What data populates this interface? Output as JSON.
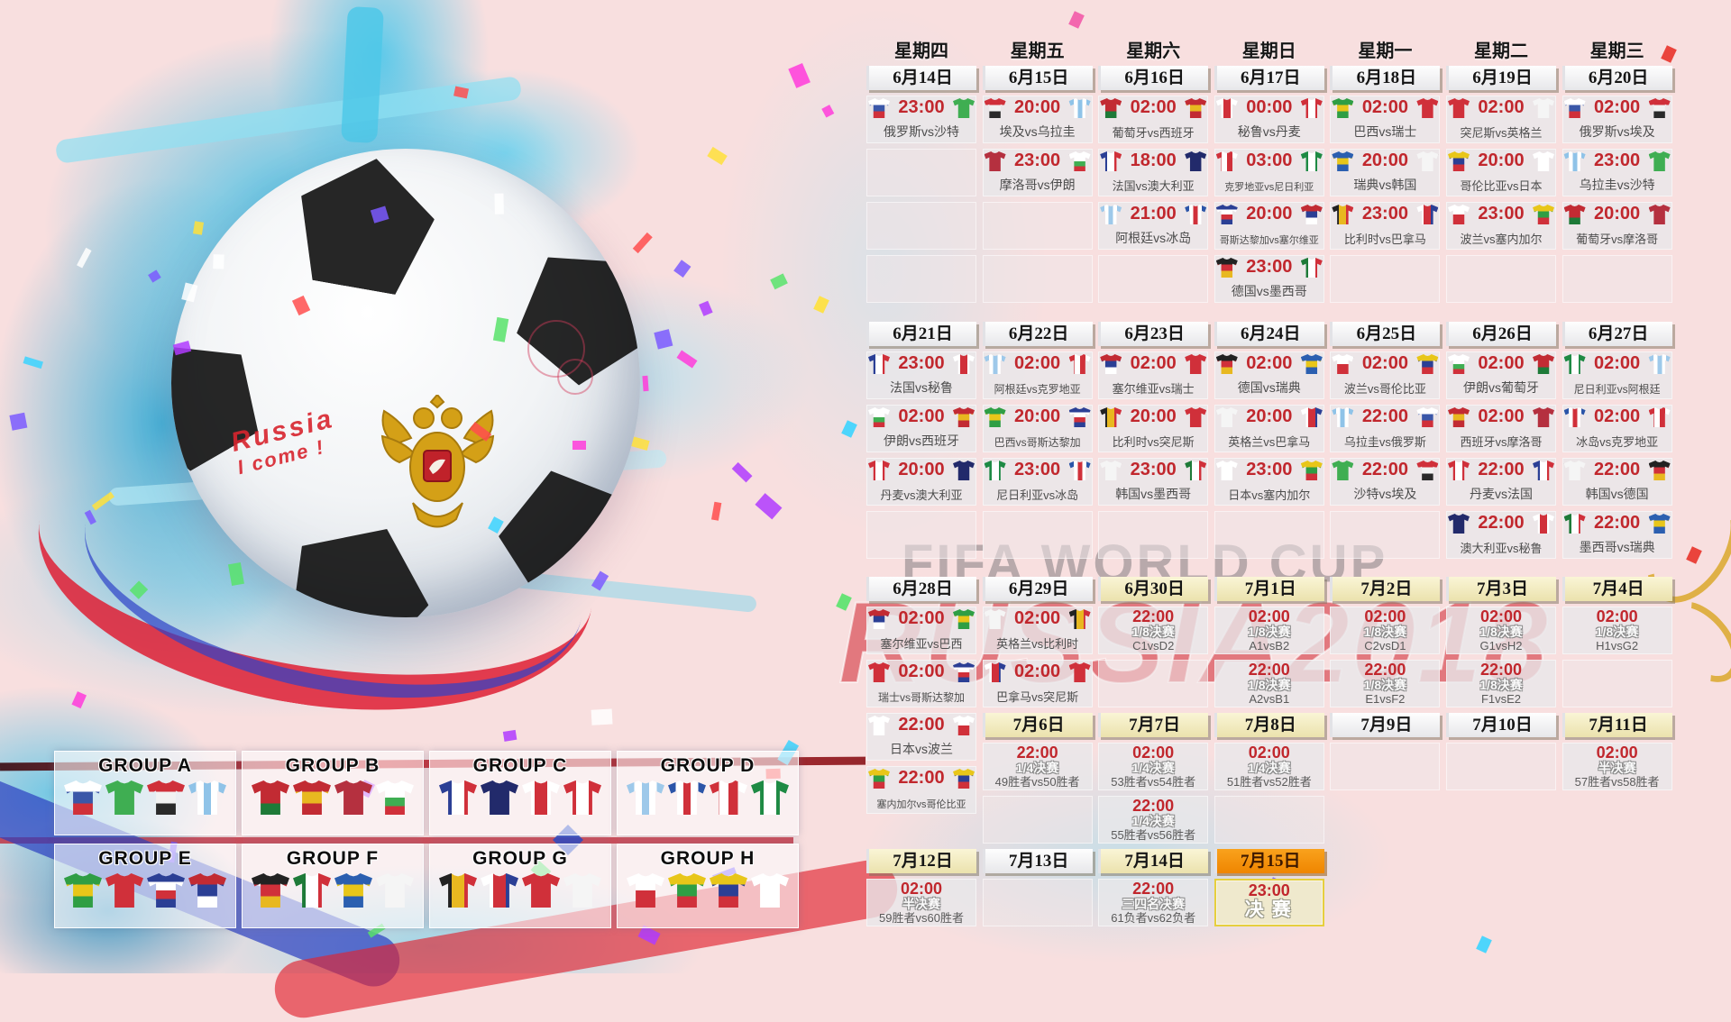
{
  "watermark": {
    "line1": "FIFA WORLD CUP",
    "line2": "RUSSIA2018"
  },
  "ball": {
    "text_line1": "Russia",
    "text_line2": "I come !"
  },
  "colors": {
    "time_red": "#c1272d",
    "team_gray": "#4d4d4d",
    "bg_pink": "#f8dfdf",
    "splash_cyan": "#38bee6",
    "header_white": "#f2f2f4",
    "header_cream": "#f3edc2",
    "header_orange": "#f59310",
    "final_border": "#e6cf3e"
  },
  "teams": {
    "russia": {
      "d": "h",
      "s": [
        "#ffffff",
        "#3a57a8",
        "#d0303a"
      ]
    },
    "saudi": {
      "d": "h",
      "s": [
        "#3fae52"
      ]
    },
    "egypt": {
      "d": "h",
      "s": [
        "#d0303a",
        "#f2f2f2",
        "#2a2a2a"
      ]
    },
    "uruguay": {
      "d": "v",
      "s": [
        "#8fc3e8",
        "#ffffff",
        "#8fc3e8",
        "#ffffff",
        "#8fc3e8"
      ]
    },
    "morocco": {
      "d": "h",
      "s": [
        "#b5303f"
      ]
    },
    "iran": {
      "d": "h",
      "s": [
        "#ffffff",
        "#ffffff",
        "#3fae52",
        "#d0303a"
      ]
    },
    "portugal": {
      "d": "h",
      "s": [
        "#c22b33",
        "#c22b33",
        "#1e7a38"
      ]
    },
    "spain": {
      "d": "h",
      "s": [
        "#c22b33",
        "#e8b820",
        "#c22b33"
      ]
    },
    "france": {
      "d": "v",
      "s": [
        "#2b3f95",
        "#ffffff",
        "#d0303a"
      ]
    },
    "australia": {
      "d": "h",
      "s": [
        "#222a6b"
      ]
    },
    "argentina": {
      "d": "v",
      "s": [
        "#9ec9ea",
        "#ffffff",
        "#9ec9ea",
        "#ffffff",
        "#9ec9ea"
      ]
    },
    "iceland": {
      "d": "v",
      "s": [
        "#2b55a8",
        "#ffffff",
        "#d0303a",
        "#ffffff",
        "#2b55a8"
      ]
    },
    "peru": {
      "d": "v",
      "s": [
        "#ffffff",
        "#d0303a",
        "#ffffff"
      ]
    },
    "denmark": {
      "d": "v",
      "s": [
        "#d0303a",
        "#ffffff",
        "#d0303a"
      ]
    },
    "croatia": {
      "d": "v",
      "s": [
        "#d0303a",
        "#ffffff",
        "#d0303a",
        "#ffffff"
      ]
    },
    "nigeria": {
      "d": "v",
      "s": [
        "#1e8a44",
        "#ffffff",
        "#1e8a44"
      ]
    },
    "costarica": {
      "d": "h",
      "s": [
        "#2b3f95",
        "#ffffff",
        "#d0303a",
        "#2b3f95"
      ]
    },
    "serbia": {
      "d": "h",
      "s": [
        "#c22b33",
        "#2b3f95",
        "#ffffff"
      ]
    },
    "germany": {
      "d": "h",
      "s": [
        "#222222",
        "#d0303a",
        "#e8b820"
      ]
    },
    "mexico": {
      "d": "v",
      "s": [
        "#1e7a38",
        "#ffffff",
        "#d0303a"
      ]
    },
    "brazil": {
      "d": "h",
      "s": [
        "#2f9e44",
        "#e8c619",
        "#2f9e44"
      ]
    },
    "switzerland": {
      "d": "h",
      "s": [
        "#d0303a"
      ]
    },
    "sweden": {
      "d": "h",
      "s": [
        "#2b5fb0",
        "#e8c619",
        "#2b5fb0"
      ]
    },
    "korea": {
      "d": "h",
      "s": [
        "#f5f5f5"
      ]
    },
    "belgium": {
      "d": "v",
      "s": [
        "#222222",
        "#e8b820",
        "#d0303a"
      ]
    },
    "panama": {
      "d": "v",
      "s": [
        "#ffffff",
        "#d0303a",
        "#2b3f95"
      ]
    },
    "tunisia": {
      "d": "h",
      "s": [
        "#d0303a"
      ]
    },
    "england": {
      "d": "h",
      "s": [
        "#f5f5f5"
      ]
    },
    "poland": {
      "d": "h",
      "s": [
        "#ffffff",
        "#d0303a"
      ]
    },
    "senegal": {
      "d": "h",
      "s": [
        "#e8c619",
        "#2f9e44",
        "#d0303a"
      ]
    },
    "colombia": {
      "d": "h",
      "s": [
        "#e8c619",
        "#2b3f95",
        "#d0303a"
      ]
    },
    "japan": {
      "d": "h",
      "s": [
        "#ffffff"
      ]
    }
  },
  "columns": [
    {
      "weekday": "星期四",
      "items": [
        {
          "t": "date",
          "label": "6月14日",
          "variant": "white"
        },
        {
          "t": "m",
          "time": "23:00",
          "teams": "俄罗斯vs沙特",
          "l": "russia",
          "r": "saudi"
        },
        {
          "t": "e"
        },
        {
          "t": "e"
        },
        {
          "t": "e"
        },
        {
          "t": "g",
          "h": 15
        },
        {
          "t": "date",
          "label": "6月21日",
          "variant": "white"
        },
        {
          "t": "m",
          "time": "23:00",
          "teams": "法国vs秘鲁",
          "l": "france",
          "r": "peru"
        },
        {
          "t": "m",
          "time": "02:00",
          "teams": "伊朗vs西班牙",
          "l": "iran",
          "r": "spain"
        },
        {
          "t": "m",
          "time": "20:00",
          "teams": "丹麦vs澳大利亚",
          "l": "denmark",
          "r": "australia"
        },
        {
          "t": "e"
        },
        {
          "t": "g",
          "h": 14
        },
        {
          "t": "date",
          "label": "6月28日",
          "variant": "white"
        },
        {
          "t": "m",
          "time": "02:00",
          "teams": "塞尔维亚vs巴西",
          "l": "serbia",
          "r": "brazil"
        },
        {
          "t": "m",
          "time": "02:00",
          "teams": "瑞士vs哥斯达黎加",
          "l": "switzerland",
          "r": "costarica"
        },
        {
          "t": "m",
          "time": "22:00",
          "teams": "日本vs波兰",
          "l": "japan",
          "r": "poland"
        },
        {
          "t": "m",
          "time": "22:00",
          "teams": "塞内加尔vs哥伦比亚",
          "l": "senegal",
          "r": "colombia"
        },
        {
          "t": "g",
          "h": 33
        },
        {
          "t": "date",
          "label": "7月12日",
          "variant": "cream"
        },
        {
          "t": "k",
          "time": "02:00",
          "stage": "半决赛",
          "teams": "59胜者vs60胜者"
        }
      ]
    },
    {
      "weekday": "星期五",
      "items": [
        {
          "t": "date",
          "label": "6月15日",
          "variant": "white"
        },
        {
          "t": "m",
          "time": "20:00",
          "teams": "埃及vs乌拉圭",
          "l": "egypt",
          "r": "uruguay"
        },
        {
          "t": "m",
          "time": "23:00",
          "teams": "摩洛哥vs伊朗",
          "l": "morocco",
          "r": "iran"
        },
        {
          "t": "e"
        },
        {
          "t": "e"
        },
        {
          "t": "g",
          "h": 15
        },
        {
          "t": "date",
          "label": "6月22日",
          "variant": "white"
        },
        {
          "t": "m",
          "time": "02:00",
          "teams": "阿根廷vs克罗地亚",
          "l": "argentina",
          "r": "croatia"
        },
        {
          "t": "m",
          "time": "20:00",
          "teams": "巴西vs哥斯达黎加",
          "l": "brazil",
          "r": "costarica"
        },
        {
          "t": "m",
          "time": "23:00",
          "teams": "尼日利亚vs冰岛",
          "l": "nigeria",
          "r": "iceland"
        },
        {
          "t": "e"
        },
        {
          "t": "g",
          "h": 14
        },
        {
          "t": "date",
          "label": "6月29日",
          "variant": "white"
        },
        {
          "t": "m",
          "time": "02:00",
          "teams": "英格兰vs比利时",
          "l": "england",
          "r": "belgium"
        },
        {
          "t": "m",
          "time": "02:00",
          "teams": "巴拿马vs突尼斯",
          "l": "panama",
          "r": "tunisia"
        },
        {
          "t": "date",
          "label": "7月6日",
          "variant": "cream"
        },
        {
          "t": "k",
          "time": "22:00",
          "stage": "1/4决赛",
          "teams": "49胜者vs50胜者"
        },
        {
          "t": "e"
        },
        {
          "t": "date",
          "label": "7月13日",
          "variant": "white"
        },
        {
          "t": "e"
        }
      ]
    },
    {
      "weekday": "星期六",
      "items": [
        {
          "t": "date",
          "label": "6月16日",
          "variant": "white"
        },
        {
          "t": "m",
          "time": "02:00",
          "teams": "葡萄牙vs西班牙",
          "l": "portugal",
          "r": "spain"
        },
        {
          "t": "m",
          "time": "18:00",
          "teams": "法国vs澳大利亚",
          "l": "france",
          "r": "australia"
        },
        {
          "t": "m",
          "time": "21:00",
          "teams": "阿根廷vs冰岛",
          "l": "argentina",
          "r": "iceland"
        },
        {
          "t": "e"
        },
        {
          "t": "g",
          "h": 15
        },
        {
          "t": "date",
          "label": "6月23日",
          "variant": "white"
        },
        {
          "t": "m",
          "time": "02:00",
          "teams": "塞尔维亚vs瑞士",
          "l": "serbia",
          "r": "switzerland"
        },
        {
          "t": "m",
          "time": "20:00",
          "teams": "比利时vs突尼斯",
          "l": "belgium",
          "r": "tunisia"
        },
        {
          "t": "m",
          "time": "23:00",
          "teams": "韩国vs墨西哥",
          "l": "korea",
          "r": "mexico"
        },
        {
          "t": "e"
        },
        {
          "t": "g",
          "h": 14
        },
        {
          "t": "date",
          "label": "6月30日",
          "variant": "cream"
        },
        {
          "t": "k",
          "time": "22:00",
          "stage": "1/8决赛",
          "teams": "C1vsD2"
        },
        {
          "t": "e"
        },
        {
          "t": "date",
          "label": "7月7日",
          "variant": "cream"
        },
        {
          "t": "k",
          "time": "02:00",
          "stage": "1/4决赛",
          "teams": "53胜者vs54胜者"
        },
        {
          "t": "k",
          "time": "22:00",
          "stage": "1/4决赛",
          "teams": "55胜者vs56胜者"
        },
        {
          "t": "date",
          "label": "7月14日",
          "variant": "cream"
        },
        {
          "t": "k",
          "time": "22:00",
          "stage": "三四名决赛",
          "teams": "61负者vs62负者"
        }
      ]
    },
    {
      "weekday": "星期日",
      "items": [
        {
          "t": "date",
          "label": "6月17日",
          "variant": "white"
        },
        {
          "t": "m",
          "time": "00:00",
          "teams": "秘鲁vs丹麦",
          "l": "peru",
          "r": "denmark"
        },
        {
          "t": "m",
          "time": "03:00",
          "teams": "克罗地亚vs尼日利亚",
          "l": "croatia",
          "r": "nigeria"
        },
        {
          "t": "m",
          "time": "20:00",
          "teams": "哥斯达黎加vs塞尔维亚",
          "l": "costarica",
          "r": "serbia"
        },
        {
          "t": "m",
          "time": "23:00",
          "teams": "德国vs墨西哥",
          "l": "germany",
          "r": "mexico"
        },
        {
          "t": "g",
          "h": 15
        },
        {
          "t": "date",
          "label": "6月24日",
          "variant": "white"
        },
        {
          "t": "m",
          "time": "02:00",
          "teams": "德国vs瑞典",
          "l": "germany",
          "r": "sweden"
        },
        {
          "t": "m",
          "time": "20:00",
          "teams": "英格兰vs巴拿马",
          "l": "england",
          "r": "panama"
        },
        {
          "t": "m",
          "time": "23:00",
          "teams": "日本vs塞内加尔",
          "l": "japan",
          "r": "senegal"
        },
        {
          "t": "e"
        },
        {
          "t": "g",
          "h": 14
        },
        {
          "t": "date",
          "label": "7月1日",
          "variant": "cream"
        },
        {
          "t": "k",
          "time": "02:00",
          "stage": "1/8决赛",
          "teams": "A1vsB2"
        },
        {
          "t": "k",
          "time": "22:00",
          "stage": "1/8决赛",
          "teams": "A2vsB1"
        },
        {
          "t": "date",
          "label": "7月8日",
          "variant": "cream"
        },
        {
          "t": "k",
          "time": "02:00",
          "stage": "1/4决赛",
          "teams": "51胜者vs52胜者"
        },
        {
          "t": "e"
        },
        {
          "t": "date",
          "label": "7月15日",
          "variant": "orange"
        },
        {
          "t": "f",
          "time": "23:00",
          "label": "决赛"
        }
      ]
    },
    {
      "weekday": "星期一",
      "items": [
        {
          "t": "date",
          "label": "6月18日",
          "variant": "white"
        },
        {
          "t": "m",
          "time": "02:00",
          "teams": "巴西vs瑞士",
          "l": "brazil",
          "r": "switzerland"
        },
        {
          "t": "m",
          "time": "20:00",
          "teams": "瑞典vs韩国",
          "l": "sweden",
          "r": "korea"
        },
        {
          "t": "m",
          "time": "23:00",
          "teams": "比利时vs巴拿马",
          "l": "belgium",
          "r": "panama"
        },
        {
          "t": "e"
        },
        {
          "t": "g",
          "h": 15
        },
        {
          "t": "date",
          "label": "6月25日",
          "variant": "white"
        },
        {
          "t": "m",
          "time": "02:00",
          "teams": "波兰vs哥伦比亚",
          "l": "poland",
          "r": "colombia"
        },
        {
          "t": "m",
          "time": "22:00",
          "teams": "乌拉圭vs俄罗斯",
          "l": "uruguay",
          "r": "russia"
        },
        {
          "t": "m",
          "time": "22:00",
          "teams": "沙特vs埃及",
          "l": "saudi",
          "r": "egypt"
        },
        {
          "t": "e"
        },
        {
          "t": "g",
          "h": 14
        },
        {
          "t": "date",
          "label": "7月2日",
          "variant": "cream"
        },
        {
          "t": "k",
          "time": "02:00",
          "stage": "1/8决赛",
          "teams": "C2vsD1"
        },
        {
          "t": "k",
          "time": "22:00",
          "stage": "1/8决赛",
          "teams": "E1vsF2"
        },
        {
          "t": "date",
          "label": "7月9日",
          "variant": "white"
        },
        {
          "t": "e"
        }
      ]
    },
    {
      "weekday": "星期二",
      "items": [
        {
          "t": "date",
          "label": "6月19日",
          "variant": "white"
        },
        {
          "t": "m",
          "time": "02:00",
          "teams": "突尼斯vs英格兰",
          "l": "tunisia",
          "r": "england"
        },
        {
          "t": "m",
          "time": "20:00",
          "teams": "哥伦比亚vs日本",
          "l": "colombia",
          "r": "japan"
        },
        {
          "t": "m",
          "time": "23:00",
          "teams": "波兰vs塞内加尔",
          "l": "poland",
          "r": "senegal"
        },
        {
          "t": "e"
        },
        {
          "t": "g",
          "h": 15
        },
        {
          "t": "date",
          "label": "6月26日",
          "variant": "white"
        },
        {
          "t": "m",
          "time": "02:00",
          "teams": "伊朗vs葡萄牙",
          "l": "iran",
          "r": "portugal"
        },
        {
          "t": "m",
          "time": "02:00",
          "teams": "西班牙vs摩洛哥",
          "l": "spain",
          "r": "morocco"
        },
        {
          "t": "m",
          "time": "22:00",
          "teams": "丹麦vs法国",
          "l": "denmark",
          "r": "france"
        },
        {
          "t": "m",
          "time": "22:00",
          "teams": "澳大利亚vs秘鲁",
          "l": "australia",
          "r": "peru"
        },
        {
          "t": "g",
          "h": 14
        },
        {
          "t": "date",
          "label": "7月3日",
          "variant": "cream"
        },
        {
          "t": "k",
          "time": "02:00",
          "stage": "1/8决赛",
          "teams": "G1vsH2"
        },
        {
          "t": "k",
          "time": "22:00",
          "stage": "1/8决赛",
          "teams": "F1vsE2"
        },
        {
          "t": "date",
          "label": "7月10日",
          "variant": "white"
        },
        {
          "t": "e"
        }
      ]
    },
    {
      "weekday": "星期三",
      "items": [
        {
          "t": "date",
          "label": "6月20日",
          "variant": "white"
        },
        {
          "t": "m",
          "time": "02:00",
          "teams": "俄罗斯vs埃及",
          "l": "russia",
          "r": "egypt"
        },
        {
          "t": "m",
          "time": "23:00",
          "teams": "乌拉圭vs沙特",
          "l": "uruguay",
          "r": "saudi"
        },
        {
          "t": "m",
          "time": "20:00",
          "teams": "葡萄牙vs摩洛哥",
          "l": "portugal",
          "r": "morocco"
        },
        {
          "t": "e"
        },
        {
          "t": "g",
          "h": 15
        },
        {
          "t": "date",
          "label": "6月27日",
          "variant": "white"
        },
        {
          "t": "m",
          "time": "02:00",
          "teams": "尼日利亚vs阿根廷",
          "l": "nigeria",
          "r": "argentina"
        },
        {
          "t": "m",
          "time": "02:00",
          "teams": "冰岛vs克罗地亚",
          "l": "iceland",
          "r": "croatia"
        },
        {
          "t": "m",
          "time": "22:00",
          "teams": "韩国vs德国",
          "l": "korea",
          "r": "germany"
        },
        {
          "t": "m",
          "time": "22:00",
          "teams": "墨西哥vs瑞典",
          "l": "mexico",
          "r": "sweden"
        },
        {
          "t": "g",
          "h": 14
        },
        {
          "t": "date",
          "label": "7月4日",
          "variant": "cream"
        },
        {
          "t": "k",
          "time": "02:00",
          "stage": "1/8决赛",
          "teams": "H1vsG2"
        },
        {
          "t": "e"
        },
        {
          "t": "date",
          "label": "7月11日",
          "variant": "cream"
        },
        {
          "t": "k",
          "time": "02:00",
          "stage": "半决赛",
          "teams": "57胜者vs58胜者"
        }
      ]
    }
  ],
  "groups": [
    {
      "name": "GROUP A",
      "jerseys": [
        "russia",
        "saudi",
        "egypt",
        "uruguay"
      ]
    },
    {
      "name": "GROUP B",
      "jerseys": [
        "portugal",
        "spain",
        "morocco",
        "iran"
      ]
    },
    {
      "name": "GROUP C",
      "jerseys": [
        "france",
        "australia",
        "peru",
        "denmark"
      ]
    },
    {
      "name": "GROUP D",
      "jerseys": [
        "argentina",
        "iceland",
        "croatia",
        "nigeria"
      ]
    },
    {
      "name": "GROUP E",
      "jerseys": [
        "brazil",
        "switzerland",
        "costarica",
        "serbia"
      ]
    },
    {
      "name": "GROUP F",
      "jerseys": [
        "germany",
        "mexico",
        "sweden",
        "korea"
      ]
    },
    {
      "name": "GROUP G",
      "jerseys": [
        "belgium",
        "panama",
        "tunisia",
        "england"
      ]
    },
    {
      "name": "GROUP H",
      "jerseys": [
        "poland",
        "senegal",
        "colombia",
        "japan"
      ]
    }
  ]
}
